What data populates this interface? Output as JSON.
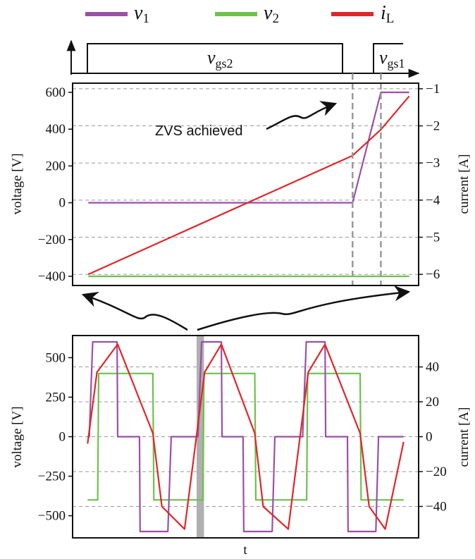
{
  "legend": [
    {
      "symbol": "v",
      "sub": "1",
      "color": "#9b4fa6"
    },
    {
      "symbol": "v",
      "sub": "2",
      "color": "#6cc24a"
    },
    {
      "symbol": "i",
      "sub": "L",
      "color": "#e0262a"
    }
  ],
  "gate_signals": [
    {
      "symbol": "v",
      "sub": "gs2"
    },
    {
      "symbol": "v",
      "sub": "gs1"
    }
  ],
  "annotation": "ZVS achieved",
  "colors": {
    "v1": "#9b4fa6",
    "v2": "#6cc24a",
    "iL": "#e0262a",
    "grid": "#9a9a9a",
    "window": "#b0b0b0"
  },
  "chart_data": [
    {
      "type": "line",
      "panel": "zoomed",
      "ylabel": "voltage [V]",
      "ylabel_right": "current [A]",
      "ylim": [
        -450,
        650
      ],
      "ylim_right": [
        -6.3,
        -0.85
      ],
      "yticks": [
        -400,
        -200,
        0,
        200,
        400,
        600
      ],
      "yticks_right": [
        -6,
        -5,
        -4,
        -3,
        -2,
        -1
      ],
      "grid": "horizontal dashed",
      "series": [
        {
          "name": "v_1",
          "axis": "left",
          "x": [
            0,
            0.84,
            0.93,
            1.02
          ],
          "y": [
            0,
            0,
            600,
            600
          ]
        },
        {
          "name": "v_2",
          "axis": "left",
          "x": [
            0,
            1.02
          ],
          "y": [
            -400,
            -400
          ]
        },
        {
          "name": "i_L",
          "axis": "right",
          "x": [
            0,
            0.84,
            0.93,
            1.02
          ],
          "y": [
            -6.0,
            -2.8,
            -2.1,
            -1.2
          ]
        }
      ],
      "events": [
        0.84,
        0.93
      ]
    },
    {
      "type": "line",
      "panel": "overview",
      "xlabel": "t",
      "ylabel": "voltage [V]",
      "ylabel_right": "current [A]",
      "ylim": [
        -640,
        640
      ],
      "ylim_right": [
        -58,
        58
      ],
      "yticks": [
        -500,
        -250,
        0,
        250,
        500
      ],
      "yticks_right": [
        -40,
        -20,
        0,
        20,
        40
      ],
      "grid": "horizontal dashed",
      "highlight_window": [
        0.326,
        0.348
      ],
      "series": [
        {
          "name": "v_1",
          "axis": "left",
          "x": [
            0.0,
            0.005,
            0.015,
            0.088,
            0.09,
            0.155,
            0.157,
            0.24,
            0.25,
            0.326,
            0.33,
            0.341,
            0.4,
            0.402,
            0.465,
            0.467,
            0.552,
            0.56,
            0.639,
            0.643,
            0.654,
            0.71,
            0.712,
            0.777,
            0.779,
            0.862,
            0.87,
            0.945
          ],
          "y": [
            0,
            0,
            600,
            600,
            0,
            0,
            -600,
            -600,
            0,
            0,
            0,
            600,
            600,
            0,
            0,
            -600,
            -600,
            0,
            0,
            0,
            600,
            600,
            0,
            0,
            -600,
            -600,
            0,
            0
          ]
        },
        {
          "name": "v_2",
          "axis": "left",
          "x": [
            0.0,
            0.03,
            0.033,
            0.195,
            0.198,
            0.345,
            0.348,
            0.5,
            0.503,
            0.655,
            0.658,
            0.815,
            0.818,
            0.945
          ],
          "y": [
            -400,
            -400,
            400,
            400,
            -400,
            -400,
            400,
            400,
            -400,
            -400,
            400,
            400,
            -400,
            -400
          ]
        },
        {
          "name": "i_L",
          "axis": "right",
          "x": [
            0.0,
            0.028,
            0.09,
            0.195,
            0.222,
            0.29,
            0.35,
            0.4,
            0.5,
            0.525,
            0.6,
            0.66,
            0.71,
            0.815,
            0.842,
            0.89,
            0.945
          ],
          "y": [
            -4,
            37,
            53,
            2,
            -40,
            -53,
            37,
            53,
            2,
            -40,
            -53,
            37,
            53,
            2,
            -40,
            -53,
            -3
          ]
        }
      ]
    }
  ]
}
